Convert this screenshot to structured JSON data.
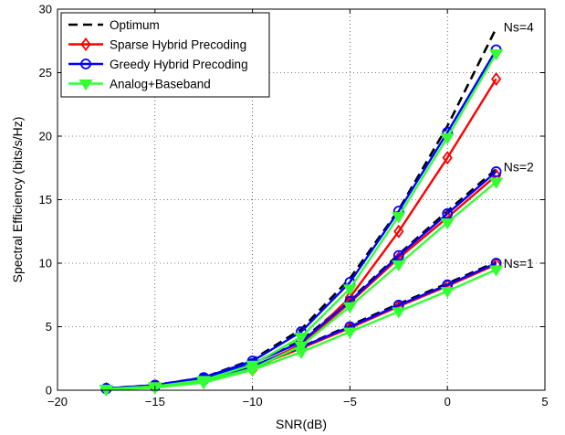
{
  "chart_data": {
    "type": "line",
    "title": "",
    "xlabel": "SNR(dB)",
    "ylabel": "Spectral Efficiency (bits/s/Hz)",
    "xlim": [
      -20,
      5
    ],
    "ylim": [
      0,
      30
    ],
    "xticks": [
      -20,
      -15,
      -10,
      -5,
      0,
      5
    ],
    "yticks": [
      0,
      5,
      10,
      15,
      20,
      25,
      30
    ],
    "grid": true,
    "legend_position": "top-left",
    "x": [
      -17.5,
      -15,
      -12.5,
      -10,
      -7.5,
      -5,
      -2.5,
      0,
      2.5
    ],
    "series": [
      {
        "name": "Optimum",
        "color": "#000000",
        "dash": "dashed",
        "marker": "none",
        "groups": [
          {
            "label": "Ns=4",
            "values": [
              0.15,
              0.4,
              1.0,
              2.4,
              4.8,
              8.8,
              14.2,
              20.8,
              28.5
            ]
          },
          {
            "label": "Ns=2",
            "values": [
              0.12,
              0.35,
              0.9,
              2.1,
              3.9,
              7.1,
              10.7,
              14.1,
              17.4
            ]
          },
          {
            "label": "Ns=1",
            "values": [
              0.1,
              0.3,
              0.8,
              1.9,
              3.4,
              5.1,
              6.8,
              8.4,
              10.1
            ]
          }
        ]
      },
      {
        "name": "Sparse Hybrid Precoding",
        "color": "#ff0000",
        "dash": "solid",
        "marker": "diamond",
        "groups": [
          {
            "label": "Ns=4",
            "values": [
              0.1,
              0.3,
              0.8,
              1.6,
              3.6,
              7.3,
              12.5,
              18.3,
              24.5
            ]
          },
          {
            "label": "Ns=2",
            "values": [
              0.1,
              0.3,
              0.8,
              1.8,
              3.6,
              6.9,
              10.4,
              13.6,
              16.9
            ]
          },
          {
            "label": "Ns=1",
            "values": [
              0.1,
              0.3,
              0.8,
              1.8,
              3.3,
              4.9,
              6.6,
              8.2,
              9.9
            ]
          }
        ]
      },
      {
        "name": "Greedy Hybrid Precoding",
        "color": "#0000ff",
        "dash": "solid",
        "marker": "circle",
        "groups": [
          {
            "label": "Ns=4",
            "values": [
              0.15,
              0.4,
              1.0,
              2.3,
              4.6,
              8.5,
              14.1,
              20.3,
              26.8
            ]
          },
          {
            "label": "Ns=2",
            "values": [
              0.12,
              0.35,
              0.9,
              2.1,
              3.8,
              7.0,
              10.6,
              13.9,
              17.2
            ]
          },
          {
            "label": "Ns=1",
            "values": [
              0.1,
              0.3,
              0.8,
              1.9,
              3.4,
              5.0,
              6.7,
              8.3,
              10.0
            ]
          }
        ]
      },
      {
        "name": "Analog+Baseband",
        "color": "#33ff33",
        "dash": "solid",
        "marker": "triangle-down",
        "groups": [
          {
            "label": "Ns=4",
            "values": [
              0.1,
              0.3,
              0.8,
              2.0,
              4.2,
              8.0,
              13.7,
              19.9,
              26.5
            ]
          },
          {
            "label": "Ns=2",
            "values": [
              0.1,
              0.3,
              0.7,
              1.7,
              3.5,
              6.6,
              9.9,
              13.2,
              16.4
            ]
          },
          {
            "label": "Ns=1",
            "values": [
              0.05,
              0.2,
              0.6,
              1.6,
              3.0,
              4.6,
              6.2,
              7.8,
              9.5
            ]
          }
        ]
      }
    ],
    "annotations": [
      {
        "text": "Ns=4",
        "x": 2.6,
        "y": 28.6
      },
      {
        "text": "Ns=2",
        "x": 2.6,
        "y": 17.6
      },
      {
        "text": "Ns=1",
        "x": 2.6,
        "y": 10.0
      }
    ]
  }
}
